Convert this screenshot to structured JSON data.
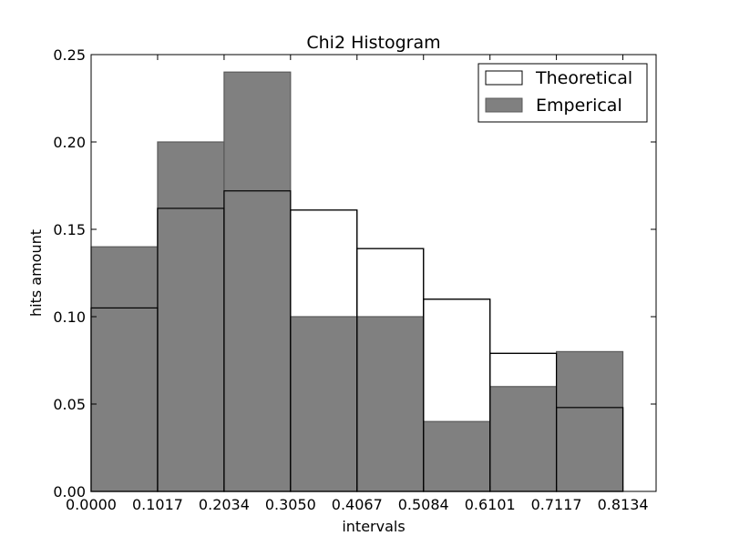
{
  "chart_data": {
    "type": "bar",
    "title": "Chi2 Histogram",
    "xlabel": "intervals",
    "ylabel": "hits amount",
    "xlim": [
      0,
      0.8642
    ],
    "ylim": [
      0,
      0.25
    ],
    "bin_edges": [
      0,
      0.1017,
      0.2034,
      0.305,
      0.4067,
      0.5084,
      0.6101,
      0.7117,
      0.8134
    ],
    "x_tick_labels": [
      "0.0000",
      "0.1017",
      "0.2034",
      "0.3050",
      "0.4067",
      "0.5084",
      "0.6101",
      "0.7117",
      "0.8134"
    ],
    "y_ticks": [
      0,
      0.05,
      0.1,
      0.15,
      0.2,
      0.25
    ],
    "y_tick_labels": [
      "0.00",
      "0.05",
      "0.10",
      "0.15",
      "0.20",
      "0.25"
    ],
    "grid": false,
    "legend_position": "top-right",
    "series": [
      {
        "name": "Theoretical",
        "values": [
          0.105,
          0.162,
          0.172,
          0.161,
          0.139,
          0.11,
          0.079,
          0.048
        ],
        "color": "#ffffff",
        "edge_color": "#000000"
      },
      {
        "name": "Emperical",
        "values": [
          0.14,
          0.2,
          0.24,
          0.1,
          0.1,
          0.04,
          0.06,
          0.08
        ],
        "color": "#808080",
        "edge_color": "#5a5a5a"
      }
    ]
  }
}
